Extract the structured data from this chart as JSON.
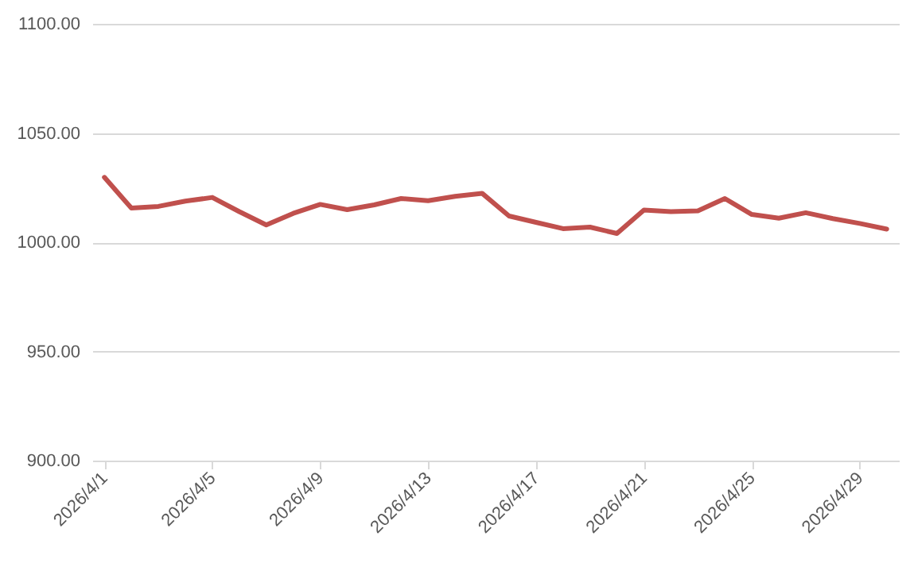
{
  "chart_data": {
    "type": "line",
    "categories": [
      "2026/4/1",
      null,
      null,
      null,
      "2026/4/5",
      null,
      null,
      null,
      "2026/4/9",
      null,
      null,
      null,
      "2026/4/13",
      null,
      null,
      null,
      "2026/4/17",
      null,
      null,
      null,
      "2026/4/21",
      null,
      null,
      null,
      "2026/4/25",
      null,
      null,
      null,
      "2026/4/29",
      null
    ],
    "series": [
      {
        "color": "#c0504d",
        "values": [
          1029.7,
          1015.6,
          1016.4,
          1018.8,
          1020.5,
          1014,
          1007.9,
          1013.2,
          1017.3,
          1014.9,
          1017.1,
          1020,
          1019,
          1021,
          1022.4,
          1012,
          1009.1,
          1006.2,
          1006.9,
          1004,
          1014.7,
          1014,
          1014.4,
          1020,
          1012.7,
          1011,
          1013.5,
          1010.8,
          1008.6,
          1006
        ]
      }
    ],
    "ylim": [
      900,
      1100
    ],
    "yticks": [
      {
        "value": 900,
        "label": "900.00"
      },
      {
        "value": 950,
        "label": "950.00"
      },
      {
        "value": 1000,
        "label": "1000.00"
      },
      {
        "value": 1050,
        "label": "1050.00"
      },
      {
        "value": 1100,
        "label": "1100.00"
      }
    ],
    "grid": "y",
    "marker": "none",
    "line_style": "solid"
  }
}
